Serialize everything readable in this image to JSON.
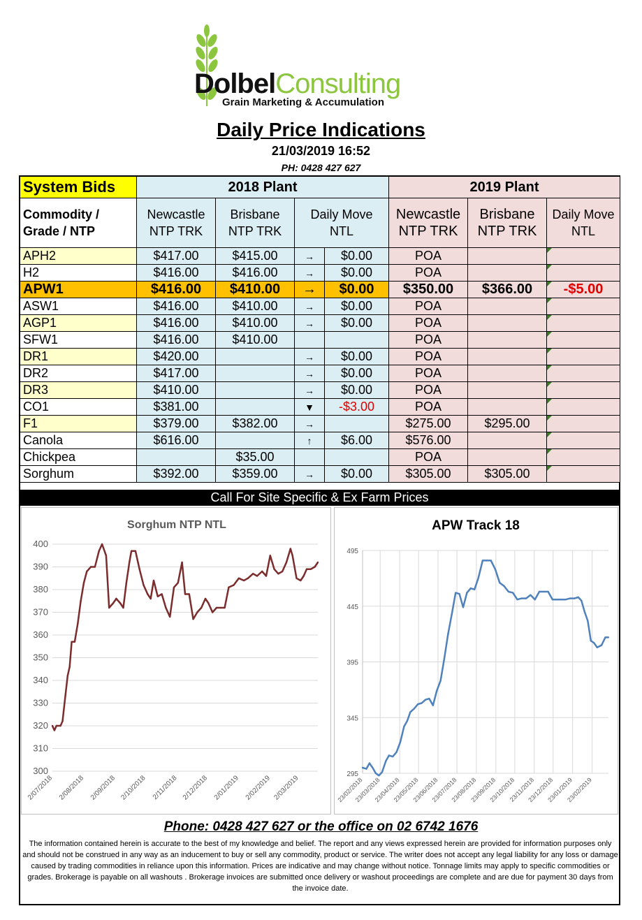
{
  "brand": {
    "name_part1": "Dolbel",
    "name_part2": "Consulting",
    "tagline": "Grain Marketing & Accumulation"
  },
  "header": {
    "title": "Daily Price Indications",
    "datetime": "21/03/2019 16:52",
    "phone": "PH: 0428 427 627"
  },
  "table": {
    "system_bids": "System Bids",
    "group_2018": "2018 Plant",
    "group_2019": "2019 Plant",
    "col_commodity": "Commodity / Grade / NTP",
    "col_newcastle": "Newcastle NTP TRK",
    "col_brisbane": "Brisbane NTP TRK",
    "col_move": "Daily Move NTL",
    "col_newcastle_19": "Newcastle NTP TRK",
    "col_brisbane_19": "Brisbane NTP TRK",
    "col_move_19": "Daily Move NTL",
    "rows": [
      {
        "name": "APH2",
        "ncl": "$417.00",
        "bne": "$415.00",
        "arrow": "→",
        "move": "$0.00",
        "ncl19": "POA",
        "bne19": "",
        "move19": ""
      },
      {
        "name": "H2",
        "ncl": "$416.00",
        "bne": "$416.00",
        "arrow": "→",
        "move": "$0.00",
        "ncl19": "POA",
        "bne19": "",
        "move19": ""
      },
      {
        "name": "APW1",
        "ncl": "$416.00",
        "bne": "$410.00",
        "arrow": "→",
        "move": "$0.00",
        "ncl19": "$350.00",
        "bne19": "$366.00",
        "move19": "-$5.00"
      },
      {
        "name": "ASW1",
        "ncl": "$416.00",
        "bne": "$410.00",
        "arrow": "→",
        "move": "$0.00",
        "ncl19": "POA",
        "bne19": "",
        "move19": ""
      },
      {
        "name": "AGP1",
        "ncl": "$416.00",
        "bne": "$410.00",
        "arrow": "→",
        "move": "$0.00",
        "ncl19": "POA",
        "bne19": "",
        "move19": ""
      },
      {
        "name": "SFW1",
        "ncl": "$416.00",
        "bne": "$410.00",
        "arrow": "",
        "move": "",
        "ncl19": "POA",
        "bne19": "",
        "move19": ""
      },
      {
        "name": "DR1",
        "ncl": "$420.00",
        "bne": "",
        "arrow": "→",
        "move": "$0.00",
        "ncl19": "POA",
        "bne19": "",
        "move19": ""
      },
      {
        "name": "DR2",
        "ncl": "$417.00",
        "bne": "",
        "arrow": "→",
        "move": "$0.00",
        "ncl19": "POA",
        "bne19": "",
        "move19": ""
      },
      {
        "name": "DR3",
        "ncl": "$410.00",
        "bne": "",
        "arrow": "→",
        "move": "$0.00",
        "ncl19": "POA",
        "bne19": "",
        "move19": ""
      },
      {
        "name": "CO1",
        "ncl": "$381.00",
        "bne": "",
        "arrow": "▼",
        "move": "-$3.00",
        "ncl19": "POA",
        "bne19": "",
        "move19": ""
      },
      {
        "name": "F1",
        "ncl": "$379.00",
        "bne": "$382.00",
        "arrow": "→",
        "move": "",
        "ncl19": "$275.00",
        "bne19": "$295.00",
        "move19": ""
      },
      {
        "name": "Canola",
        "ncl": "$616.00",
        "bne": "",
        "arrow": "↑",
        "move": "$6.00",
        "ncl19": "$576.00",
        "bne19": "",
        "move19": ""
      },
      {
        "name": "Chickpea",
        "ncl": "",
        "bne": "$35.00",
        "arrow": "",
        "move": "",
        "ncl19": "POA",
        "bne19": "",
        "move19": ""
      },
      {
        "name": "Sorghum",
        "ncl": "$392.00",
        "bne": "$359.00",
        "arrow": "→",
        "move": "$0.00",
        "ncl19": "$305.00",
        "bne19": "$305.00",
        "move19": ""
      }
    ],
    "call_bar": "Call For Site Specific & Ex Farm Prices"
  },
  "colors": {
    "blue_fill": "#dbeef4",
    "pink_fill": "#f2dcdb",
    "yellow_fill": "#ffffcc",
    "highlight_row": "#ffc000",
    "negative": "#e00000",
    "sorghum_line": "#7b2c2c",
    "apw_line": "#4f81bd"
  },
  "chart_data": [
    {
      "type": "line",
      "title": "Sorghum NTP NTL",
      "xlabel": "",
      "ylabel": "",
      "ylim": [
        300,
        400
      ],
      "yticks": [
        300,
        310,
        320,
        330,
        340,
        350,
        360,
        370,
        380,
        390,
        400
      ],
      "xlim": [
        "2018-07-02",
        "2019-03-21"
      ],
      "xticks": [
        "2/07/2018",
        "2/08/2018",
        "2/09/2018",
        "2/10/2018",
        "2/11/2018",
        "2/12/2018",
        "2/01/2019",
        "2/02/2019",
        "2/03/2019"
      ],
      "grid": true,
      "x": [
        "2018-07-02",
        "2018-07-04",
        "2018-07-06",
        "2018-07-10",
        "2018-07-12",
        "2018-07-14",
        "2018-07-17",
        "2018-07-19",
        "2018-07-21",
        "2018-07-24",
        "2018-07-27",
        "2018-07-30",
        "2018-08-02",
        "2018-08-05",
        "2018-08-09",
        "2018-08-13",
        "2018-08-17",
        "2018-08-20",
        "2018-08-24",
        "2018-08-27",
        "2018-08-31",
        "2018-09-03",
        "2018-09-07",
        "2018-09-10",
        "2018-09-13",
        "2018-09-16",
        "2018-09-18",
        "2018-09-22",
        "2018-09-26",
        "2018-09-30",
        "2018-10-04",
        "2018-10-07",
        "2018-10-10",
        "2018-10-14",
        "2018-10-18",
        "2018-10-22",
        "2018-10-26",
        "2018-10-30",
        "2018-11-03",
        "2018-11-07",
        "2018-11-10",
        "2018-11-14",
        "2018-11-18",
        "2018-11-22",
        "2018-11-26",
        "2018-11-30",
        "2018-12-03",
        "2018-12-07",
        "2018-12-11",
        "2018-12-15",
        "2018-12-19",
        "2018-12-23",
        "2018-12-28",
        "2019-01-02",
        "2019-01-07",
        "2019-01-11",
        "2019-01-16",
        "2019-01-20",
        "2019-01-25",
        "2019-01-29",
        "2019-02-02",
        "2019-02-06",
        "2019-02-10",
        "2019-02-14",
        "2019-02-18",
        "2019-02-22",
        "2019-02-24",
        "2019-02-28",
        "2019-03-04",
        "2019-03-07",
        "2019-03-10",
        "2019-03-14",
        "2019-03-18",
        "2019-03-21"
      ],
      "values": [
        320,
        318,
        320,
        320,
        322,
        330,
        342,
        346,
        357,
        357,
        365,
        375,
        383,
        388,
        390,
        390,
        397,
        400,
        395,
        372,
        374,
        376,
        374,
        372,
        383,
        392,
        397,
        397,
        389,
        382,
        378,
        376,
        384,
        377,
        378,
        372,
        368,
        381,
        383,
        392,
        378,
        378,
        367,
        370,
        372,
        376,
        374,
        370,
        372,
        372,
        372,
        381,
        382,
        385,
        384,
        385,
        387,
        386,
        388,
        386,
        395,
        389,
        387,
        388,
        392,
        398,
        395,
        385,
        384,
        386,
        389,
        389,
        390,
        392
      ]
    },
    {
      "type": "line",
      "title": "APW Track 18",
      "xlabel": "",
      "ylabel": "",
      "ylim": [
        295,
        495
      ],
      "yticks": [
        295,
        345,
        395,
        445,
        495
      ],
      "xlim": [
        "2018-02-23",
        "2019-03-21"
      ],
      "xticks": [
        "23/02/2018",
        "23/03/2018",
        "23/04/2018",
        "23/05/2018",
        "23/06/2018",
        "23/07/2018",
        "23/08/2018",
        "23/09/2018",
        "23/10/2018",
        "23/11/2018",
        "23/12/2018",
        "23/01/2019",
        "23/02/2019"
      ],
      "grid": true,
      "x": [
        "2018-02-23",
        "2018-03-01",
        "2018-03-06",
        "2018-03-11",
        "2018-03-16",
        "2018-03-21",
        "2018-03-26",
        "2018-04-01",
        "2018-04-06",
        "2018-04-12",
        "2018-04-18",
        "2018-04-24",
        "2018-04-30",
        "2018-05-05",
        "2018-05-10",
        "2018-05-16",
        "2018-05-22",
        "2018-05-28",
        "2018-06-03",
        "2018-06-09",
        "2018-06-15",
        "2018-06-21",
        "2018-06-27",
        "2018-07-03",
        "2018-07-09",
        "2018-07-15",
        "2018-07-21",
        "2018-07-27",
        "2018-08-02",
        "2018-08-08",
        "2018-08-14",
        "2018-08-20",
        "2018-08-26",
        "2018-09-02",
        "2018-09-08",
        "2018-09-15",
        "2018-09-22",
        "2018-09-29",
        "2018-10-06",
        "2018-10-13",
        "2018-10-20",
        "2018-10-27",
        "2018-11-03",
        "2018-11-10",
        "2018-11-17",
        "2018-11-24",
        "2018-12-01",
        "2018-12-08",
        "2018-12-15",
        "2018-12-22",
        "2018-12-29",
        "2019-01-05",
        "2019-01-12",
        "2019-01-19",
        "2019-01-26",
        "2019-02-01",
        "2019-02-06",
        "2019-02-11",
        "2019-02-16",
        "2019-02-21",
        "2019-02-26",
        "2019-03-03",
        "2019-03-10",
        "2019-03-16",
        "2019-03-21"
      ],
      "values": [
        300,
        299,
        304,
        300,
        295,
        293,
        296,
        306,
        311,
        310,
        314,
        323,
        337,
        342,
        350,
        353,
        357,
        358,
        361,
        362,
        356,
        369,
        378,
        398,
        420,
        438,
        457,
        456,
        444,
        457,
        461,
        460,
        470,
        486,
        486,
        486,
        478,
        466,
        463,
        458,
        457,
        451,
        452,
        452,
        455,
        451,
        458,
        458,
        458,
        451,
        451,
        451,
        451,
        452,
        452,
        453,
        450,
        440,
        432,
        414,
        412,
        408,
        410,
        417,
        417
      ]
    }
  ],
  "footer": {
    "phone": "Phone: 0428 427 627 or the office on 02 6742 1676",
    "disclaimer": "The information contained herein is accurate to the best of my knowledge and belief.  The report and any views expressed herein are provided for information purposes only and should not be construed in any way as an inducement to buy or sell any commodity, product or service. The writer does not accept any legal liability for any loss or damage caused by trading commodities in reliance upon this information. Prices are indicative and may change without notice. Tonnage limits may apply to specific commodities or grades.  Brokerage is payable on all washouts . Brokerage invoices are submitted once delivery or washout proceedings are complete and are due for payment 30 days from the invoice date."
  }
}
